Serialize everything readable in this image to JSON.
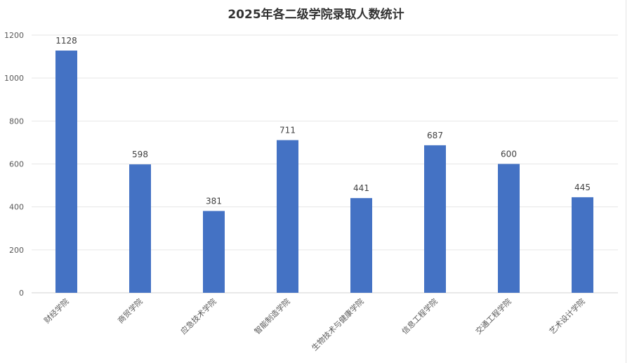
{
  "chart_data": {
    "type": "bar",
    "title": "2025年各二级学院录取人数统计",
    "xlabel": "",
    "ylabel": "",
    "categories": [
      "财经学院",
      "商贸学院",
      "应急技术学院",
      "智能制造学院",
      "生物技术与健康学院",
      "信息工程学院",
      "交通工程学院",
      "艺术设计学院"
    ],
    "values": [
      1128,
      598,
      381,
      711,
      441,
      687,
      600,
      445
    ],
    "ylim": [
      0,
      1200
    ],
    "yticks": [
      "0",
      "200",
      "400",
      "600",
      "800",
      "1000",
      "1200"
    ],
    "grid": true,
    "legend": "none",
    "bar_color": "#4472C4"
  }
}
